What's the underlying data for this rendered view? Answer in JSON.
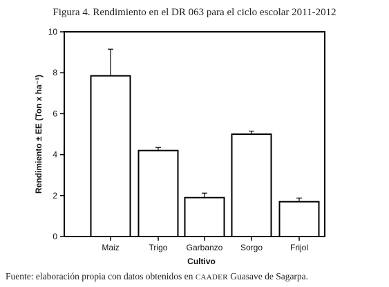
{
  "figure": {
    "title": "Figura 4. Rendimiento en el DR 063 para el ciclo escolar 2011-2012",
    "source_prefix": "Fuente: elaboración propia con datos obtenidos en ",
    "source_org": "CAADER",
    "source_suffix": " Guasave de Sagarpa."
  },
  "chart_data": {
    "type": "bar",
    "title": "Figura 4. Rendimiento en el DR 063 para el ciclo escolar 2011-2012",
    "xlabel": "Cultivo",
    "ylabel": "Rendimiento ± EE (Ton x ha⁻¹)",
    "categories": [
      "Maiz",
      "Trigo",
      "Garbanzo",
      "Sorgo",
      "Frijol"
    ],
    "values": [
      7.85,
      4.2,
      1.9,
      5.0,
      1.7
    ],
    "errors": [
      1.3,
      0.15,
      0.22,
      0.15,
      0.18
    ],
    "ylim": [
      0,
      10
    ],
    "yticks": [
      "0",
      "2",
      "4",
      "6",
      "8",
      "10"
    ],
    "grid": false,
    "bar_color": "#ffffff",
    "edge_color": "#000000"
  }
}
